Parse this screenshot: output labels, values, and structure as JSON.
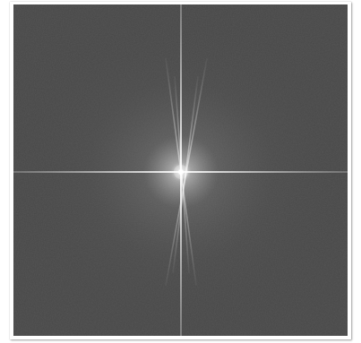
{
  "image": {
    "kind": "fourier-magnitude-spectrum",
    "background_color": "#464646",
    "center_glow_color": "#ffffff",
    "streak_color": "#d8d8d8"
  }
}
